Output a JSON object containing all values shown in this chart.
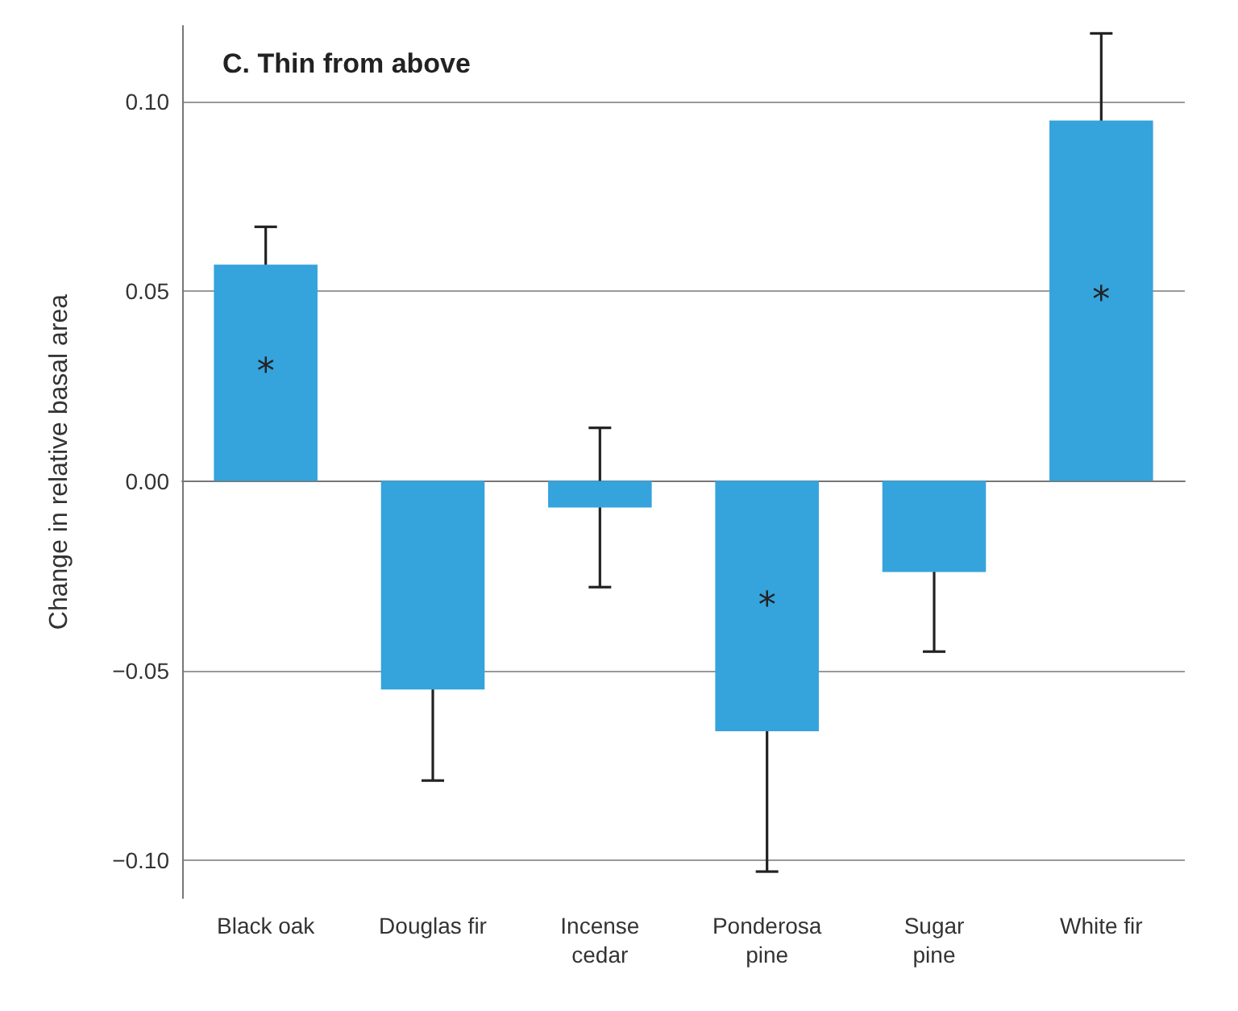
{
  "chart_data": {
    "type": "bar",
    "title": "C. Thin from above",
    "ylabel": "Change in relative basal area",
    "categories": [
      "Black oak",
      "Douglas fir",
      "Incense\ncedar",
      "Ponderosa\npine",
      "Sugar\npine",
      "White fir"
    ],
    "values": [
      0.057,
      -0.055,
      -0.007,
      -0.066,
      -0.024,
      0.095
    ],
    "errors": [
      0.01,
      0.024,
      0.021,
      0.037,
      0.021,
      0.023
    ],
    "color": "#35a3dc",
    "ylim": [
      -0.11,
      0.12
    ],
    "yticks": [
      {
        "value": -0.1,
        "label": "−0.10"
      },
      {
        "value": -0.05,
        "label": "−0.05"
      },
      {
        "value": 0,
        "label": "0.00"
      },
      {
        "value": 0.05,
        "label": "0.05"
      },
      {
        "value": 0.1,
        "label": "0.10"
      }
    ],
    "grid": "y",
    "value_labels": [
      "*",
      null,
      null,
      "*",
      null,
      "*"
    ]
  }
}
